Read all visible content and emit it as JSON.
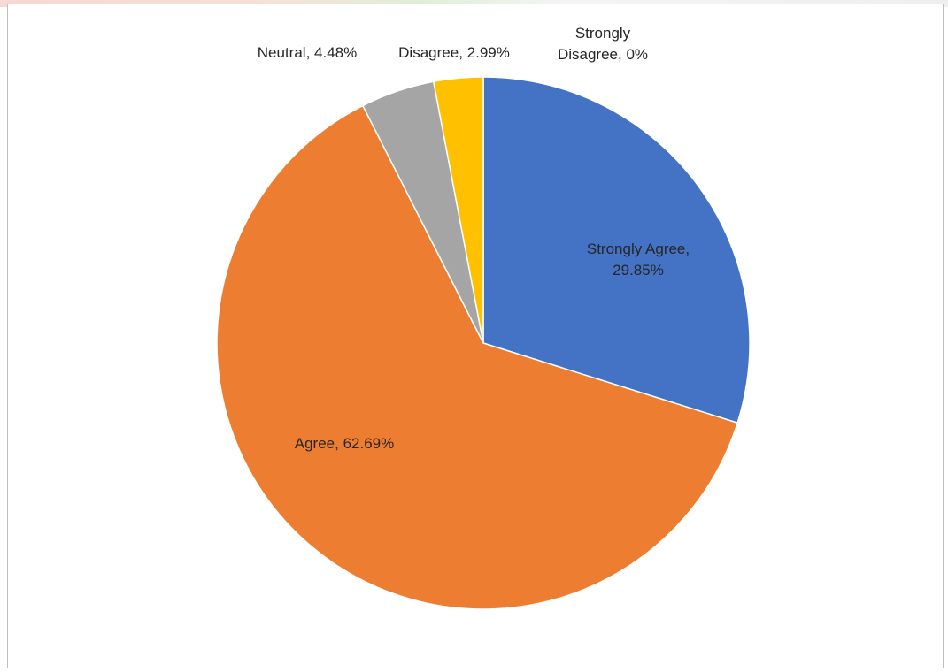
{
  "chart_data": {
    "type": "pie",
    "title": "",
    "series": [
      {
        "values": [
          29.85,
          62.69,
          4.48,
          2.99,
          0
        ]
      }
    ],
    "categories": [
      "Strongly Agree",
      "Agree",
      "Neutral",
      "Disagree",
      "Strongly Disagree"
    ],
    "slices": [
      {
        "label": "Strongly Agree",
        "value": 29.85,
        "display": [
          "Strongly Agree,",
          "29.85%"
        ],
        "color": "#4472c4"
      },
      {
        "label": "Agree",
        "value": 62.69,
        "display": [
          "Agree, 62.69%"
        ],
        "color": "#ed7d31"
      },
      {
        "label": "Neutral",
        "value": 4.48,
        "display": [
          "Neutral, 4.48%"
        ],
        "color": "#a5a5a5"
      },
      {
        "label": "Disagree",
        "value": 2.99,
        "display": [
          "Disagree, 2.99%"
        ],
        "color": "#ffc000"
      },
      {
        "label": "Strongly Disagree",
        "value": 0,
        "display": [
          "Strongly",
          "Disagree, 0%"
        ],
        "color": "#5b9bd5"
      }
    ],
    "legend": "none",
    "data_labels": "category, percentage",
    "start_angle": "12 o'clock, clockwise"
  }
}
